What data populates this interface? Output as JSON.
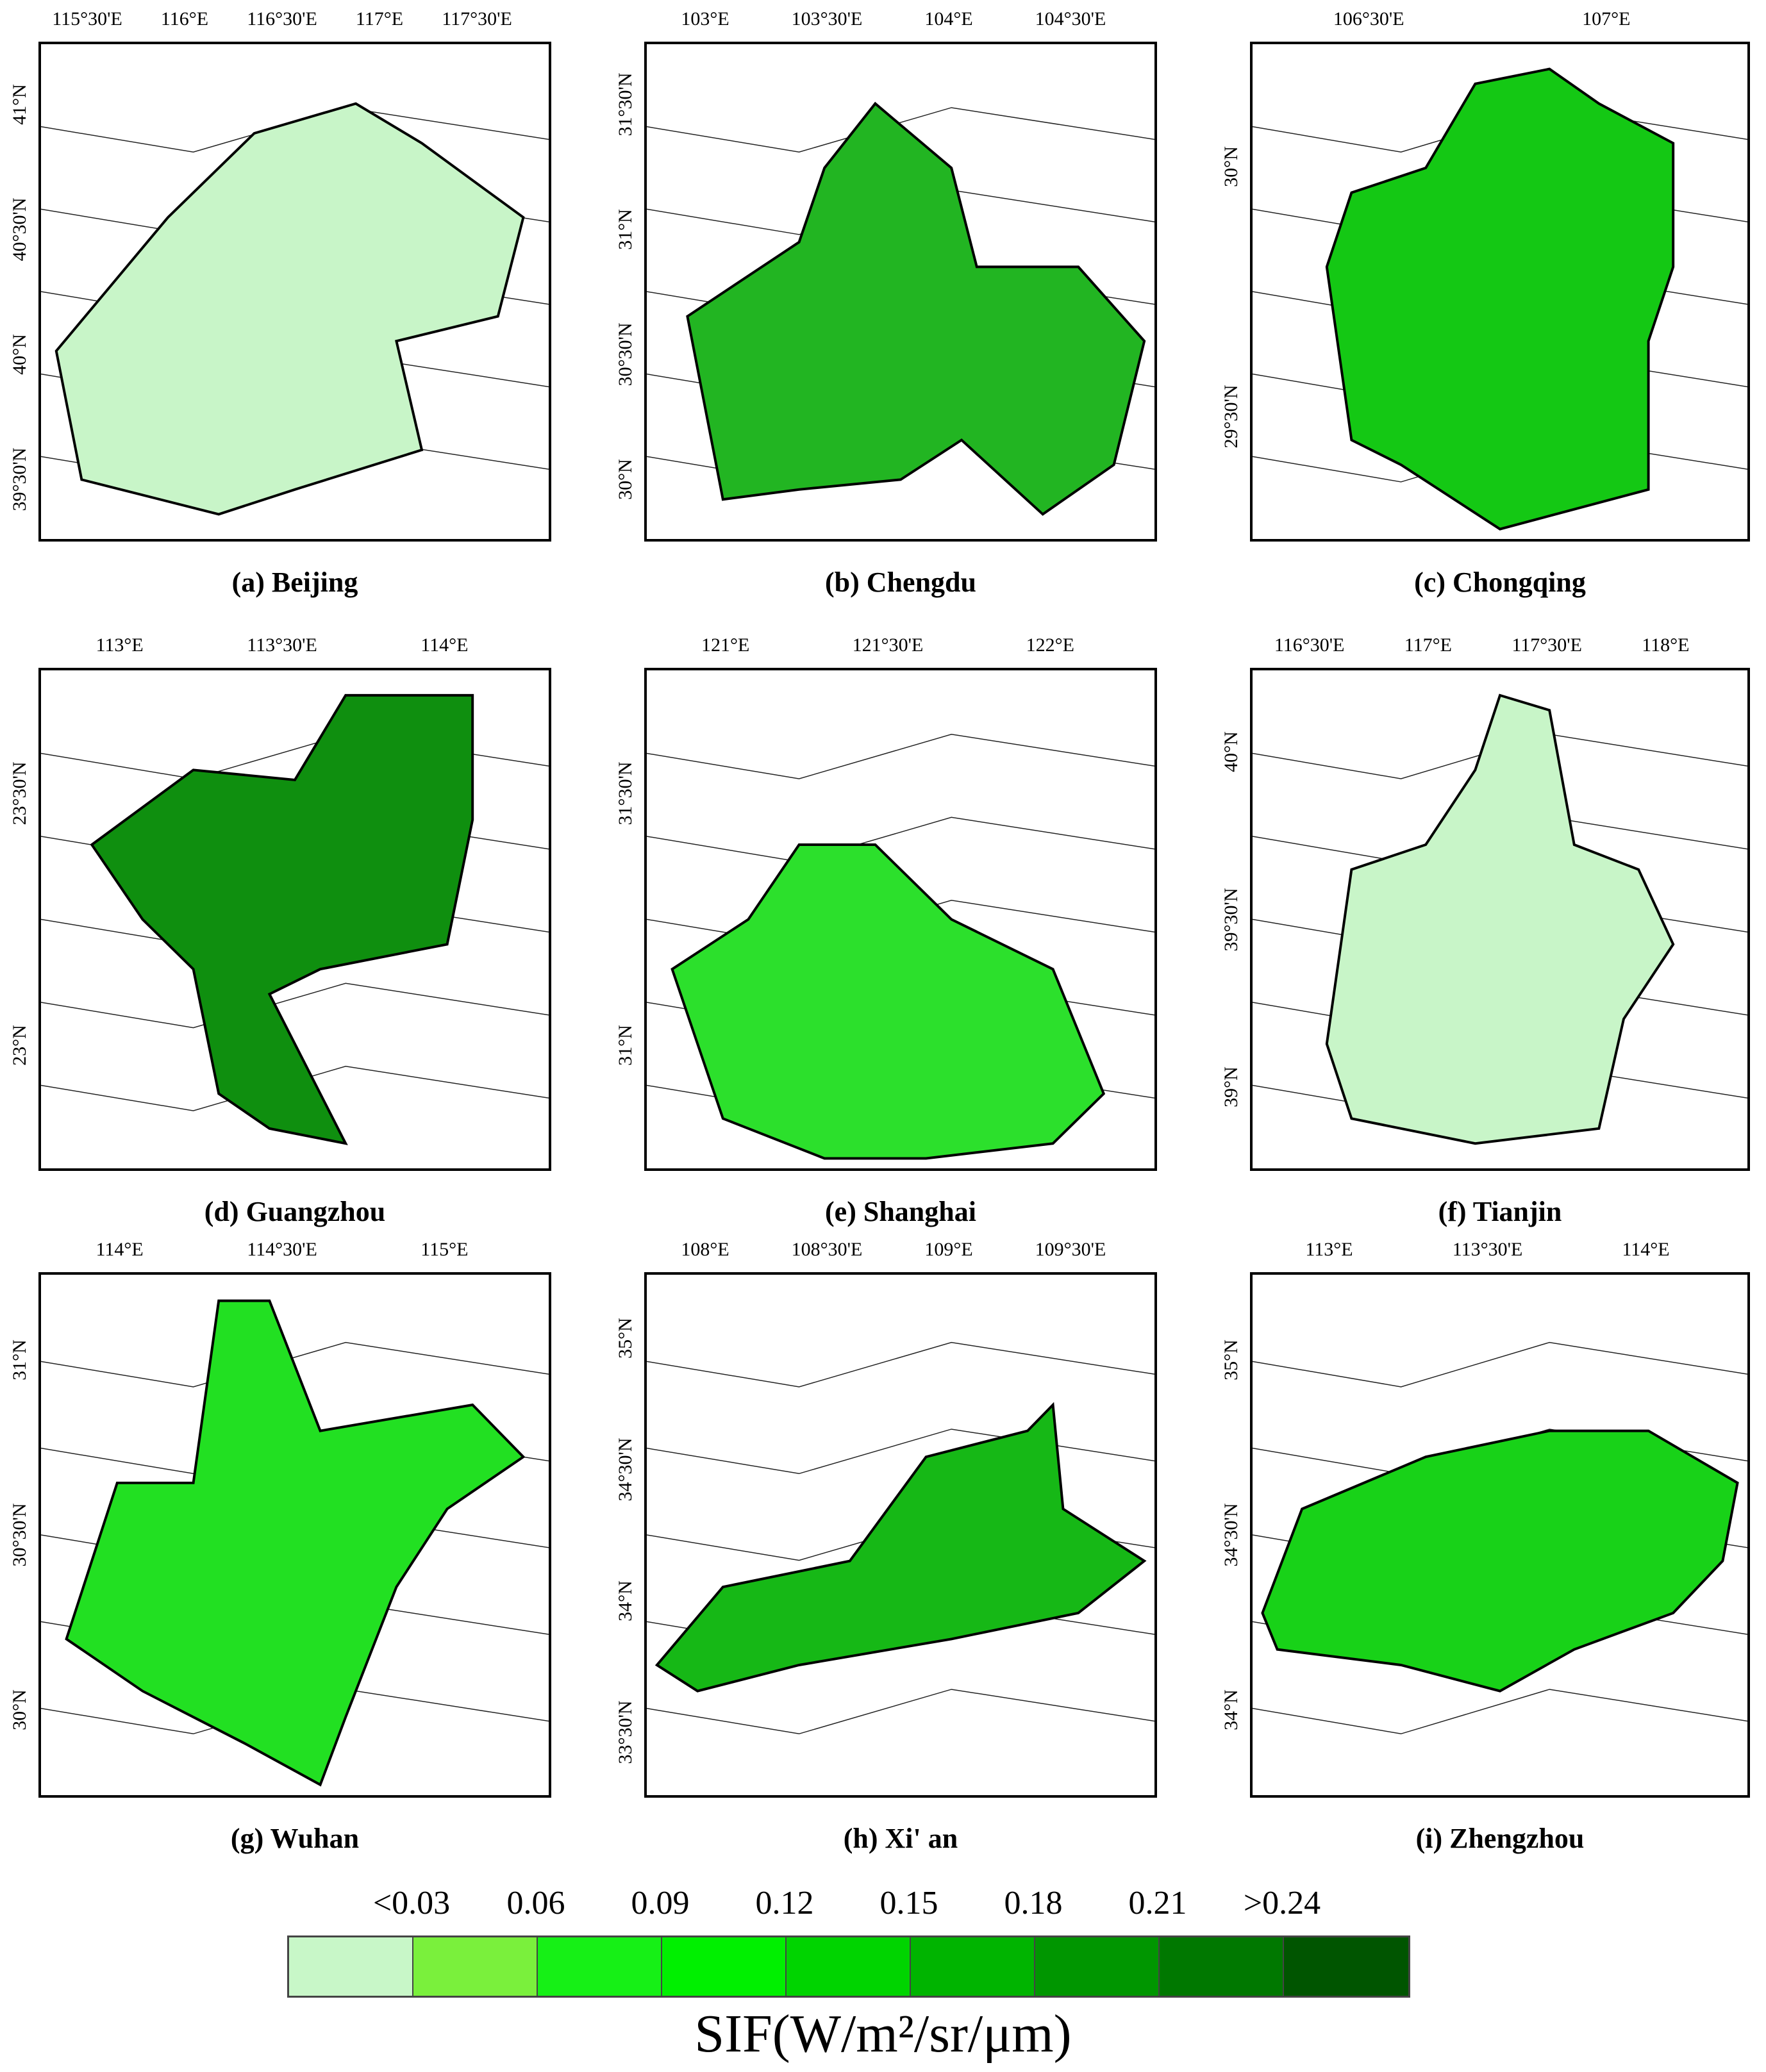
{
  "panels": [
    {
      "id": "beijing",
      "caption": "(a) Beijing",
      "xticks": [
        "115°30'E",
        "116°E",
        "116°30'E",
        "117°E",
        "117°30'E"
      ],
      "yticks": [
        "41°N",
        "40°30'N",
        "40°N",
        "39°30'N"
      ],
      "fill": "#c8f5c8"
    },
    {
      "id": "chengdu",
      "caption": "(b) Chengdu",
      "xticks": [
        "103°E",
        "103°30'E",
        "104°E",
        "104°30'E"
      ],
      "yticks": [
        "31°30'N",
        "31°N",
        "30°30'N",
        "30°N"
      ],
      "fill": "#22b522"
    },
    {
      "id": "chongqing",
      "caption": "(c) Chongqing",
      "xticks": [
        "106°30'E",
        "107°E"
      ],
      "yticks": [
        "30°N",
        "29°30'N"
      ],
      "fill": "#14c814"
    },
    {
      "id": "guangzhou",
      "caption": "(d) Guangzhou",
      "xticks": [
        "113°E",
        "113°30'E",
        "114°E"
      ],
      "yticks": [
        "23°30'N",
        "23°N"
      ],
      "fill": "#0f8f0f"
    },
    {
      "id": "shanghai",
      "caption": "(e) Shanghai",
      "xticks": [
        "121°E",
        "121°30'E",
        "122°E"
      ],
      "yticks": [
        "31°30'N",
        "31°N"
      ],
      "fill": "#2ce02c"
    },
    {
      "id": "tianjin",
      "caption": "(f) Tianjin",
      "xticks": [
        "116°30'E",
        "117°E",
        "117°30'E",
        "118°E"
      ],
      "yticks": [
        "40°N",
        "39°30'N",
        "39°N"
      ],
      "fill": "#c8f5c8"
    },
    {
      "id": "wuhan",
      "caption": "(g) Wuhan",
      "xticks": [
        "114°E",
        "114°30'E",
        "115°E"
      ],
      "yticks": [
        "31°N",
        "30°30'N",
        "30°N"
      ],
      "fill": "#22e022"
    },
    {
      "id": "xian",
      "caption": "(h) Xi' an",
      "xticks": [
        "108°E",
        "108°30'E",
        "109°E",
        "109°30'E"
      ],
      "yticks": [
        "35°N",
        "34°30'N",
        "34°N",
        "33°30'N"
      ],
      "fill": "#16b816"
    },
    {
      "id": "zhengzhou",
      "caption": "(i) Zhengzhou",
      "xticks": [
        "113°E",
        "113°30'E",
        "114°E"
      ],
      "yticks": [
        "35°N",
        "34°30'N",
        "34°N"
      ],
      "fill": "#18d218"
    }
  ],
  "legend": {
    "labels": [
      "<0.03",
      "0.06",
      "0.09",
      "0.12",
      "0.15",
      "0.18",
      "0.21",
      ">0.24"
    ],
    "colors": [
      "#c8f7c8",
      "#7af03c",
      "#16f016",
      "#00f000",
      "#00d400",
      "#00b400",
      "#009600",
      "#007800",
      "#005500"
    ],
    "unit": "SIF(W/m²/sr/μm)"
  }
}
